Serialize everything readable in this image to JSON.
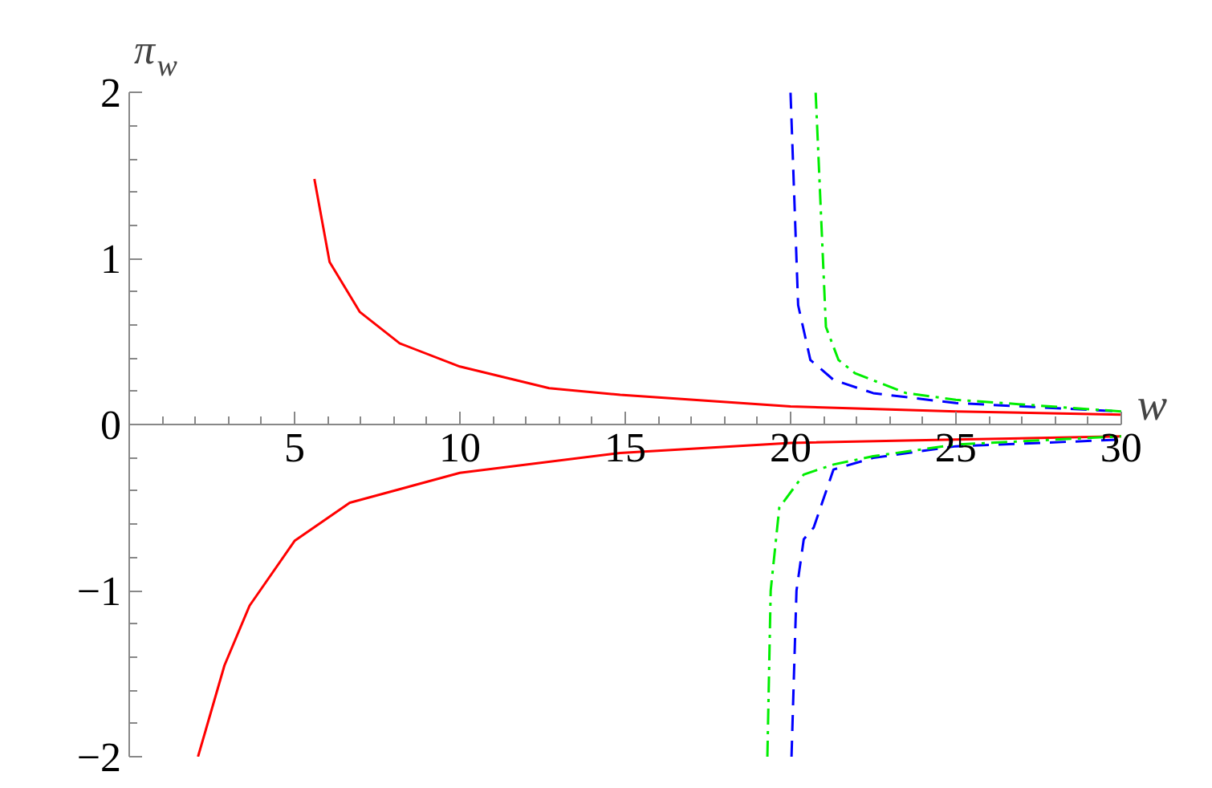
{
  "chart_data": {
    "type": "line",
    "xlabel": "w",
    "ylabel": "π$_{w}$",
    "xlim": [
      0,
      30
    ],
    "ylim": [
      -2,
      2
    ],
    "xticks": [
      5,
      10,
      15,
      20,
      25,
      30
    ],
    "yticks": [
      -2,
      -1,
      0,
      1,
      2
    ],
    "series": [
      {
        "color": "#ff0000",
        "line_style": "solid",
        "x": [
          5.6,
          6.06,
          6.97,
          8.18,
          10,
          12.7,
          14.85,
          20,
          25,
          30
        ],
        "values": [
          1.48,
          0.98,
          0.68,
          0.49,
          0.35,
          0.22,
          0.18,
          0.11,
          0.08,
          0.06
        ]
      },
      {
        "color": "#ff0000",
        "line_style": "solid",
        "x": [
          2.08,
          2.88,
          3.64,
          5,
          6.67,
          10,
          14.85,
          20,
          25,
          30
        ],
        "values": [
          -2,
          -1.45,
          -1.09,
          -0.7,
          -0.47,
          -0.29,
          -0.17,
          -0.11,
          -0.09,
          -0.07
        ]
      },
      {
        "color": "#0000ff",
        "line_style": "dashed",
        "x": [
          20.0,
          20.23,
          20.6,
          21.3,
          22.5,
          25,
          30
        ],
        "values": [
          2,
          0.72,
          0.39,
          0.27,
          0.19,
          0.13,
          0.08
        ]
      },
      {
        "color": "#00ee00",
        "line_style": "dashdot",
        "x": [
          20.76,
          21.07,
          21.45,
          21.95,
          23.5,
          25,
          30
        ],
        "values": [
          2,
          0.59,
          0.39,
          0.31,
          0.19,
          0.15,
          0.08
        ]
      },
      {
        "color": "#0000ff",
        "line_style": "dashed",
        "x": [
          20.03,
          20.18,
          20.4,
          20.7,
          21.3,
          22.5,
          25,
          30
        ],
        "values": [
          -2,
          -1.0,
          -0.69,
          -0.62,
          -0.27,
          -0.2,
          -0.13,
          -0.09
        ]
      },
      {
        "color": "#00ee00",
        "line_style": "dashdot",
        "x": [
          19.3,
          19.4,
          19.66,
          20.4,
          21.3,
          22.5,
          25,
          30
        ],
        "values": [
          -2,
          -1.0,
          -0.5,
          -0.3,
          -0.24,
          -0.19,
          -0.12,
          -0.07
        ]
      }
    ]
  }
}
